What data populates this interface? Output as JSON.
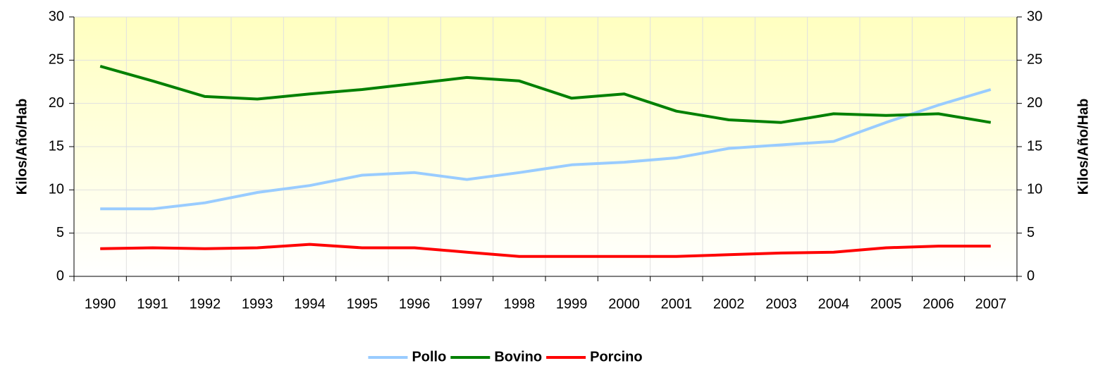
{
  "chart_data": {
    "type": "line",
    "y_label": "Kilos/Año/Hab",
    "y2_label": "Kilos/Año/Hab",
    "categories": [
      "1990",
      "1991",
      "1992",
      "1993",
      "1994",
      "1995",
      "1996",
      "1997",
      "1998",
      "1999",
      "2000",
      "2001",
      "2002",
      "2003",
      "2004",
      "2005",
      "2006",
      "2007"
    ],
    "series": [
      {
        "name": "Pollo",
        "color": "#99ccff",
        "values": [
          7.8,
          7.8,
          8.5,
          9.7,
          10.5,
          11.7,
          12.0,
          11.2,
          12.0,
          12.9,
          13.2,
          13.7,
          14.8,
          15.2,
          15.6,
          17.8,
          19.8,
          21.6
        ]
      },
      {
        "name": "Bovino",
        "color": "#008000",
        "values": [
          24.3,
          22.6,
          20.8,
          20.5,
          21.1,
          21.6,
          22.3,
          23.0,
          22.6,
          20.6,
          21.1,
          19.1,
          18.1,
          17.8,
          18.8,
          18.6,
          18.8,
          17.8
        ]
      },
      {
        "name": "Porcino",
        "color": "#ff0000",
        "values": [
          3.2,
          3.3,
          3.2,
          3.3,
          3.7,
          3.3,
          3.3,
          2.8,
          2.3,
          2.3,
          2.3,
          2.3,
          2.5,
          2.7,
          2.8,
          3.3,
          3.5,
          3.5
        ]
      }
    ],
    "ylim": [
      0,
      30
    ],
    "yticks": [
      0,
      5,
      10,
      15,
      20,
      25,
      30
    ],
    "y2lim": [
      0,
      30
    ],
    "y2ticks": [
      0,
      5,
      10,
      15,
      20,
      25,
      30
    ],
    "grid": true,
    "legend": "bottom"
  }
}
